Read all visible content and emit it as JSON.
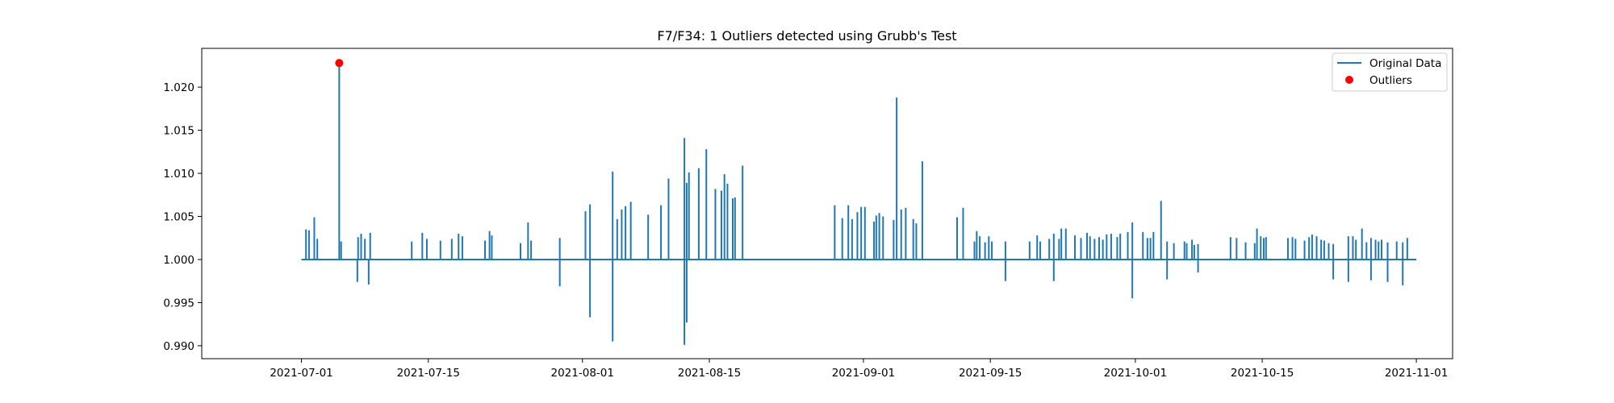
{
  "chart_data": {
    "type": "line",
    "title": "F7/F34: 1 Outliers detected using Grubb's Test",
    "xlabel": "",
    "ylabel": "",
    "x_range": [
      "2021-06-20",
      "2021-11-05"
    ],
    "ylim": [
      0.9885,
      1.0245
    ],
    "x_ticks": [
      "2021-07-01",
      "2021-07-15",
      "2021-08-01",
      "2021-08-15",
      "2021-09-01",
      "2021-09-15",
      "2021-10-01",
      "2021-10-15",
      "2021-11-01"
    ],
    "y_ticks": [
      0.99,
      0.995,
      1.0,
      1.005,
      1.01,
      1.015,
      1.02
    ],
    "y_tick_labels": [
      "0.990",
      "0.995",
      "1.000",
      "1.005",
      "1.010",
      "1.015",
      "1.020"
    ],
    "grid": false,
    "legend_position": "top-right",
    "baseline": 1.0,
    "series_color": "#1f77b4",
    "outlier_color": "#ff0000",
    "series": [
      {
        "name": "Original Data",
        "spikes": [
          [
            "2021-07-01T12:00",
            1.0035
          ],
          [
            "2021-07-01T20:00",
            1.0034
          ],
          [
            "2021-07-02T10:00",
            1.0049
          ],
          [
            "2021-07-02T18:00",
            1.0024
          ],
          [
            "2021-07-05T04:00",
            1.0228
          ],
          [
            "2021-07-05T09:00",
            1.0021
          ],
          [
            "2021-07-07T04:00",
            0.9974
          ],
          [
            "2021-07-07T06:00",
            1.0026
          ],
          [
            "2021-07-07T14:00",
            1.003
          ],
          [
            "2021-07-08T00:00",
            1.0024
          ],
          [
            "2021-07-08T14:00",
            1.0031
          ],
          [
            "2021-07-08T10:00",
            0.9971
          ],
          [
            "2021-07-13T04:00",
            1.0021
          ],
          [
            "2021-07-14T08:00",
            1.0031
          ],
          [
            "2021-07-14T20:00",
            1.0024
          ],
          [
            "2021-07-16T08:00",
            1.0022
          ],
          [
            "2021-07-17T14:00",
            1.0024
          ],
          [
            "2021-07-18T08:00",
            1.003
          ],
          [
            "2021-07-18T18:00",
            1.0027
          ],
          [
            "2021-07-21T06:00",
            1.0022
          ],
          [
            "2021-07-21T18:00",
            1.0033
          ],
          [
            "2021-07-22T00:00",
            1.0028
          ],
          [
            "2021-07-25T04:00",
            1.0019
          ],
          [
            "2021-07-26T00:00",
            1.0043
          ],
          [
            "2021-07-26T08:00",
            1.0022
          ],
          [
            "2021-07-29T12:00",
            1.0025
          ],
          [
            "2021-07-29T12:00",
            0.9969
          ],
          [
            "2021-08-01T08:00",
            1.0056
          ],
          [
            "2021-08-01T20:00",
            1.0064
          ],
          [
            "2021-08-01T20:00",
            0.9933
          ],
          [
            "2021-08-04T08:00",
            1.0102
          ],
          [
            "2021-08-04T08:00",
            0.9905
          ],
          [
            "2021-08-04T20:00",
            1.0047
          ],
          [
            "2021-08-05T08:00",
            1.0058
          ],
          [
            "2021-08-05T18:00",
            1.0062
          ],
          [
            "2021-08-06T08:00",
            1.0067
          ],
          [
            "2021-08-08T06:00",
            1.0052
          ],
          [
            "2021-08-09T16:00",
            1.0063
          ],
          [
            "2021-08-10T12:00",
            1.0094
          ],
          [
            "2021-08-12T06:00",
            1.0141
          ],
          [
            "2021-08-12T06:00",
            0.9901
          ],
          [
            "2021-08-12T12:00",
            1.0089
          ],
          [
            "2021-08-12T12:00",
            0.9927
          ],
          [
            "2021-08-12T18:00",
            1.0101
          ],
          [
            "2021-08-13T20:00",
            1.0106
          ],
          [
            "2021-08-14T16:00",
            1.0128
          ],
          [
            "2021-08-15T16:00",
            1.0082
          ],
          [
            "2021-08-16T08:00",
            1.008
          ],
          [
            "2021-08-16T16:00",
            1.0099
          ],
          [
            "2021-08-17T00:00",
            1.0088
          ],
          [
            "2021-08-17T14:00",
            1.0071
          ],
          [
            "2021-08-17T20:00",
            1.0072
          ],
          [
            "2021-08-18T16:00",
            1.0109
          ],
          [
            "2021-08-28T20:00",
            1.0063
          ],
          [
            "2021-08-29T16:00",
            1.0048
          ],
          [
            "2021-08-30T08:00",
            1.0063
          ],
          [
            "2021-08-30T18:00",
            1.0047
          ],
          [
            "2021-08-31T08:00",
            1.0055
          ],
          [
            "2021-08-31T18:00",
            1.0061
          ],
          [
            "2021-09-01T04:00",
            1.0061
          ],
          [
            "2021-09-02T04:00",
            1.0044
          ],
          [
            "2021-09-02T10:00",
            1.0051
          ],
          [
            "2021-09-02T18:00",
            1.0054
          ],
          [
            "2021-09-03T04:00",
            1.005
          ],
          [
            "2021-09-04T08:00",
            1.0046
          ],
          [
            "2021-09-04T16:00",
            1.0188
          ],
          [
            "2021-09-05T04:00",
            1.0058
          ],
          [
            "2021-09-05T16:00",
            1.006
          ],
          [
            "2021-09-06T12:00",
            1.0047
          ],
          [
            "2021-09-06T20:00",
            1.0042
          ],
          [
            "2021-09-07T12:00",
            1.0114
          ],
          [
            "2021-09-11T08:00",
            1.0049
          ],
          [
            "2021-09-12T00:00",
            1.006
          ],
          [
            "2021-09-13T06:00",
            1.0021
          ],
          [
            "2021-09-13T12:00",
            1.0033
          ],
          [
            "2021-09-13T20:00",
            1.0027
          ],
          [
            "2021-09-14T10:00",
            1.002
          ],
          [
            "2021-09-14T20:00",
            1.0027
          ],
          [
            "2021-09-15T04:00",
            1.0021
          ],
          [
            "2021-09-16T16:00",
            1.0021
          ],
          [
            "2021-09-16T16:00",
            0.9975
          ],
          [
            "2021-09-19T08:00",
            1.0021
          ],
          [
            "2021-09-20T04:00",
            1.0028
          ],
          [
            "2021-09-20T12:00",
            1.0021
          ],
          [
            "2021-09-21T12:00",
            1.0024
          ],
          [
            "2021-09-22T00:00",
            1.003
          ],
          [
            "2021-09-22T00:00",
            0.9975
          ],
          [
            "2021-09-22T14:00",
            1.0024
          ],
          [
            "2021-09-22T20:00",
            1.0036
          ],
          [
            "2021-09-23T08:00",
            1.0036
          ],
          [
            "2021-09-24T08:00",
            1.0028
          ],
          [
            "2021-09-25T00:00",
            1.0025
          ],
          [
            "2021-09-25T16:00",
            1.0031
          ],
          [
            "2021-09-26T00:00",
            1.0027
          ],
          [
            "2021-09-26T12:00",
            1.0024
          ],
          [
            "2021-09-27T00:00",
            1.0026
          ],
          [
            "2021-09-27T10:00",
            1.0023
          ],
          [
            "2021-09-27T20:00",
            1.0029
          ],
          [
            "2021-09-28T08:00",
            1.003
          ],
          [
            "2021-09-29T00:00",
            1.0026
          ],
          [
            "2021-09-29T08:00",
            1.003
          ],
          [
            "2021-09-30T04:00",
            1.0032
          ],
          [
            "2021-09-30T16:00",
            1.0043
          ],
          [
            "2021-09-30T16:00",
            0.9955
          ],
          [
            "2021-10-01T20:00",
            1.0032
          ],
          [
            "2021-10-02T08:00",
            1.0025
          ],
          [
            "2021-10-02T16:00",
            1.0025
          ],
          [
            "2021-10-03T00:00",
            1.0032
          ],
          [
            "2021-10-03T20:00",
            1.0068
          ],
          [
            "2021-10-04T12:00",
            1.0021
          ],
          [
            "2021-10-04T12:00",
            0.9977
          ],
          [
            "2021-10-05T06:00",
            1.0019
          ],
          [
            "2021-10-06T10:00",
            1.0021
          ],
          [
            "2021-10-06T16:00",
            1.0019
          ],
          [
            "2021-10-07T06:00",
            1.0023
          ],
          [
            "2021-10-07T12:00",
            1.0017
          ],
          [
            "2021-10-07T22:00",
            1.0018
          ],
          [
            "2021-10-07T22:00",
            0.9985
          ],
          [
            "2021-10-11T12:00",
            1.0026
          ],
          [
            "2021-10-12T04:00",
            1.0025
          ],
          [
            "2021-10-13T04:00",
            1.002
          ],
          [
            "2021-10-14T04:00",
            1.0019
          ],
          [
            "2021-10-14T10:00",
            1.0036
          ],
          [
            "2021-10-14T20:00",
            1.0027
          ],
          [
            "2021-10-15T04:00",
            1.0025
          ],
          [
            "2021-10-15T10:00",
            1.0026
          ],
          [
            "2021-10-17T20:00",
            1.0025
          ],
          [
            "2021-10-18T08:00",
            1.0026
          ],
          [
            "2021-10-18T16:00",
            1.0024
          ],
          [
            "2021-10-19T16:00",
            1.0022
          ],
          [
            "2021-10-20T04:00",
            1.0026
          ],
          [
            "2021-10-20T12:00",
            1.0029
          ],
          [
            "2021-10-21T00:00",
            1.0027
          ],
          [
            "2021-10-21T12:00",
            1.0023
          ],
          [
            "2021-10-21T20:00",
            1.0022
          ],
          [
            "2021-10-22T08:00",
            1.0019
          ],
          [
            "2021-10-22T20:00",
            1.0018
          ],
          [
            "2021-10-22T20:00",
            0.9977
          ],
          [
            "2021-10-24T12:00",
            1.0027
          ],
          [
            "2021-10-24T12:00",
            0.9974
          ],
          [
            "2021-10-25T00:00",
            1.0027
          ],
          [
            "2021-10-25T08:00",
            1.0023
          ],
          [
            "2021-10-26T00:00",
            1.0036
          ],
          [
            "2021-10-26T12:00",
            1.002
          ],
          [
            "2021-10-27T00:00",
            1.0025
          ],
          [
            "2021-10-27T00:00",
            0.9976
          ],
          [
            "2021-10-27T12:00",
            1.0023
          ],
          [
            "2021-10-27T20:00",
            1.0021
          ],
          [
            "2021-10-28T04:00",
            1.0023
          ],
          [
            "2021-10-28T20:00",
            1.002
          ],
          [
            "2021-10-28T20:00",
            0.9974
          ],
          [
            "2021-10-29T20:00",
            1.0021
          ],
          [
            "2021-10-30T12:00",
            1.002
          ],
          [
            "2021-10-30T12:00",
            0.997
          ],
          [
            "2021-10-31T00:00",
            1.0025
          ]
        ],
        "x_start": "2021-07-01T00:00",
        "x_end": "2021-11-01T00:00"
      },
      {
        "name": "Outliers",
        "points": [
          [
            "2021-07-05T04:00",
            1.0228
          ]
        ]
      }
    ]
  }
}
